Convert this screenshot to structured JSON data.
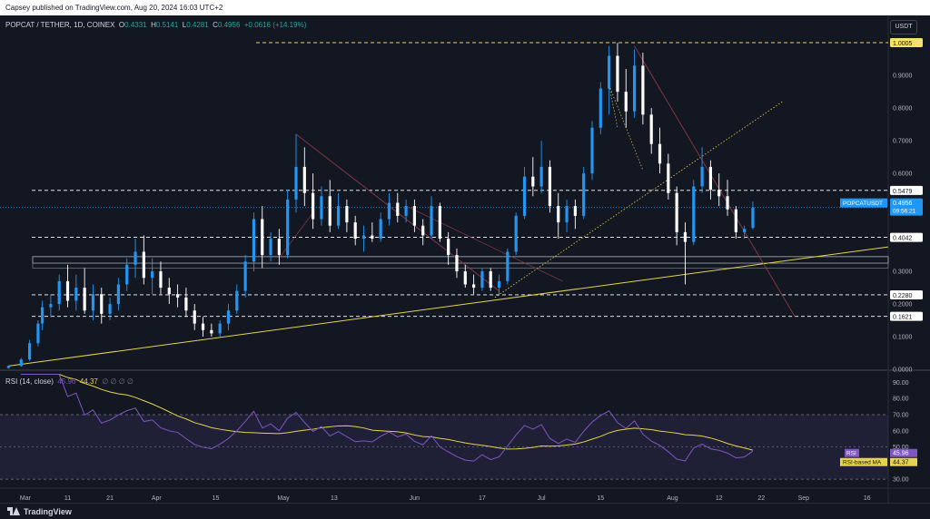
{
  "header": {
    "published": "Capsey published on TradingView.com, Aug 20, 2024 16:03 UTC+2"
  },
  "legend": {
    "symbol": "POPCAT / TETHER, 1D, COINEX",
    "open_label": "O",
    "open": "0.4331",
    "high_label": "H",
    "high": "0.5141",
    "low_label": "L",
    "low": "0.4281",
    "close_label": "C",
    "close": "0.4956",
    "change": "+0.0616 (+14.19%)"
  },
  "currency_button": "USDT",
  "rsi_legend": {
    "label": "RSI (14, close)",
    "rsi": "45.96",
    "ma": "44.37",
    "placeholders": "∅ ∅ ∅ ∅"
  },
  "footer": {
    "brand": "TradingView"
  },
  "colors": {
    "up": "#2196f3",
    "down": "#ffffff",
    "trend": "#e5d44a",
    "rsi": "#7e57c2",
    "rsi_ma": "#e5d44a",
    "background": "#131722"
  },
  "chart_data": {
    "type": "candlestick",
    "title": "POPCAT / TETHER, 1D, COINEX",
    "price_axis": {
      "ticks": [
        "1.0000",
        "0.9000",
        "0.8000",
        "0.7000",
        "0.6000",
        "0.5000",
        "0.3000",
        "0.2000",
        "0.1000",
        "0.0000"
      ],
      "ylim": [
        0,
        1.07
      ]
    },
    "time_axis": {
      "ticks": [
        {
          "label": "Mar",
          "date": "2024-03-01"
        },
        {
          "label": "11",
          "date": "2024-03-11"
        },
        {
          "label": "21",
          "date": "2024-03-21"
        },
        {
          "label": "Apr",
          "date": "2024-04-01"
        },
        {
          "label": "15",
          "date": "2024-04-15"
        },
        {
          "label": "May",
          "date": "2024-05-01"
        },
        {
          "label": "13",
          "date": "2024-05-13"
        },
        {
          "label": "Jun",
          "date": "2024-06-01"
        },
        {
          "label": "17",
          "date": "2024-06-17"
        },
        {
          "label": "Jul",
          "date": "2024-07-01"
        },
        {
          "label": "15",
          "date": "2024-07-15"
        },
        {
          "label": "Aug",
          "date": "2024-08-01"
        },
        {
          "label": "12",
          "date": "2024-08-12"
        },
        {
          "label": "22",
          "date": "2024-08-22"
        },
        {
          "label": "Sep",
          "date": "2024-09-01"
        },
        {
          "label": "16",
          "date": "2024-09-16"
        }
      ]
    },
    "levels": [
      {
        "price": 1.0005,
        "label": "1.0005",
        "color": "#f0d34a"
      },
      {
        "price": 0.5479,
        "label": "0.5479",
        "color": "#ffffff"
      },
      {
        "price": 0.4042,
        "label": "0.4042",
        "color": "#ffffff"
      },
      {
        "price": 0.228,
        "label": "0.2280",
        "color": "#ffffff"
      },
      {
        "price": 0.1621,
        "label": "0.1621",
        "color": "#ffffff"
      }
    ],
    "current_price": {
      "price": 0.4956,
      "symbol": "POPCATUSDT",
      "value": "0.4956",
      "countdown": "09:56:21"
    },
    "candles": [
      {
        "date": "2024-02-26",
        "o": 0.004,
        "h": 0.012,
        "l": 0.002,
        "c": 0.01
      },
      {
        "date": "2024-02-29",
        "o": 0.01,
        "h": 0.035,
        "l": 0.008,
        "c": 0.03
      },
      {
        "date": "2024-03-02",
        "o": 0.03,
        "h": 0.09,
        "l": 0.025,
        "c": 0.08
      },
      {
        "date": "2024-03-04",
        "o": 0.08,
        "h": 0.15,
        "l": 0.07,
        "c": 0.14
      },
      {
        "date": "2024-03-05",
        "o": 0.14,
        "h": 0.21,
        "l": 0.12,
        "c": 0.19
      },
      {
        "date": "2024-03-07",
        "o": 0.19,
        "h": 0.23,
        "l": 0.16,
        "c": 0.2
      },
      {
        "date": "2024-03-09",
        "o": 0.2,
        "h": 0.29,
        "l": 0.18,
        "c": 0.27
      },
      {
        "date": "2024-03-11",
        "o": 0.27,
        "h": 0.32,
        "l": 0.19,
        "c": 0.21
      },
      {
        "date": "2024-03-13",
        "o": 0.21,
        "h": 0.29,
        "l": 0.18,
        "c": 0.25
      },
      {
        "date": "2024-03-15",
        "o": 0.25,
        "h": 0.31,
        "l": 0.17,
        "c": 0.18
      },
      {
        "date": "2024-03-17",
        "o": 0.18,
        "h": 0.26,
        "l": 0.15,
        "c": 0.23
      },
      {
        "date": "2024-03-19",
        "o": 0.23,
        "h": 0.25,
        "l": 0.14,
        "c": 0.17
      },
      {
        "date": "2024-03-21",
        "o": 0.17,
        "h": 0.22,
        "l": 0.15,
        "c": 0.2
      },
      {
        "date": "2024-03-23",
        "o": 0.2,
        "h": 0.28,
        "l": 0.18,
        "c": 0.26
      },
      {
        "date": "2024-03-25",
        "o": 0.26,
        "h": 0.34,
        "l": 0.24,
        "c": 0.32
      },
      {
        "date": "2024-03-27",
        "o": 0.32,
        "h": 0.4,
        "l": 0.28,
        "c": 0.36
      },
      {
        "date": "2024-03-29",
        "o": 0.36,
        "h": 0.41,
        "l": 0.26,
        "c": 0.28
      },
      {
        "date": "2024-03-31",
        "o": 0.28,
        "h": 0.34,
        "l": 0.23,
        "c": 0.3
      },
      {
        "date": "2024-04-02",
        "o": 0.3,
        "h": 0.33,
        "l": 0.23,
        "c": 0.25
      },
      {
        "date": "2024-04-04",
        "o": 0.25,
        "h": 0.28,
        "l": 0.2,
        "c": 0.23
      },
      {
        "date": "2024-04-06",
        "o": 0.23,
        "h": 0.26,
        "l": 0.19,
        "c": 0.22
      },
      {
        "date": "2024-04-08",
        "o": 0.22,
        "h": 0.25,
        "l": 0.16,
        "c": 0.18
      },
      {
        "date": "2024-04-10",
        "o": 0.18,
        "h": 0.2,
        "l": 0.12,
        "c": 0.14
      },
      {
        "date": "2024-04-12",
        "o": 0.14,
        "h": 0.16,
        "l": 0.1,
        "c": 0.12
      },
      {
        "date": "2024-04-14",
        "o": 0.12,
        "h": 0.14,
        "l": 0.1,
        "c": 0.11
      },
      {
        "date": "2024-04-16",
        "o": 0.11,
        "h": 0.15,
        "l": 0.1,
        "c": 0.14
      },
      {
        "date": "2024-04-18",
        "o": 0.14,
        "h": 0.2,
        "l": 0.12,
        "c": 0.18
      },
      {
        "date": "2024-04-20",
        "o": 0.18,
        "h": 0.26,
        "l": 0.17,
        "c": 0.24
      },
      {
        "date": "2024-04-22",
        "o": 0.24,
        "h": 0.35,
        "l": 0.22,
        "c": 0.33
      },
      {
        "date": "2024-04-24",
        "o": 0.33,
        "h": 0.48,
        "l": 0.3,
        "c": 0.46
      },
      {
        "date": "2024-04-26",
        "o": 0.46,
        "h": 0.5,
        "l": 0.31,
        "c": 0.35
      },
      {
        "date": "2024-04-28",
        "o": 0.35,
        "h": 0.42,
        "l": 0.33,
        "c": 0.4
      },
      {
        "date": "2024-04-30",
        "o": 0.4,
        "h": 0.43,
        "l": 0.32,
        "c": 0.35
      },
      {
        "date": "2024-05-02",
        "o": 0.35,
        "h": 0.55,
        "l": 0.34,
        "c": 0.52
      },
      {
        "date": "2024-05-04",
        "o": 0.52,
        "h": 0.72,
        "l": 0.48,
        "c": 0.62
      },
      {
        "date": "2024-05-06",
        "o": 0.62,
        "h": 0.68,
        "l": 0.5,
        "c": 0.54
      },
      {
        "date": "2024-05-08",
        "o": 0.54,
        "h": 0.6,
        "l": 0.43,
        "c": 0.46
      },
      {
        "date": "2024-05-10",
        "o": 0.46,
        "h": 0.56,
        "l": 0.44,
        "c": 0.53
      },
      {
        "date": "2024-05-12",
        "o": 0.53,
        "h": 0.58,
        "l": 0.42,
        "c": 0.44
      },
      {
        "date": "2024-05-14",
        "o": 0.44,
        "h": 0.54,
        "l": 0.43,
        "c": 0.5
      },
      {
        "date": "2024-05-16",
        "o": 0.5,
        "h": 0.52,
        "l": 0.42,
        "c": 0.45
      },
      {
        "date": "2024-05-18",
        "o": 0.45,
        "h": 0.47,
        "l": 0.38,
        "c": 0.4
      },
      {
        "date": "2024-05-20",
        "o": 0.4,
        "h": 0.44,
        "l": 0.36,
        "c": 0.41
      },
      {
        "date": "2024-05-22",
        "o": 0.41,
        "h": 0.45,
        "l": 0.39,
        "c": 0.4
      },
      {
        "date": "2024-05-24",
        "o": 0.4,
        "h": 0.48,
        "l": 0.39,
        "c": 0.46
      },
      {
        "date": "2024-05-26",
        "o": 0.46,
        "h": 0.54,
        "l": 0.44,
        "c": 0.51
      },
      {
        "date": "2024-05-28",
        "o": 0.51,
        "h": 0.54,
        "l": 0.45,
        "c": 0.47
      },
      {
        "date": "2024-05-30",
        "o": 0.47,
        "h": 0.52,
        "l": 0.45,
        "c": 0.5
      },
      {
        "date": "2024-06-01",
        "o": 0.5,
        "h": 0.52,
        "l": 0.42,
        "c": 0.44
      },
      {
        "date": "2024-06-03",
        "o": 0.44,
        "h": 0.46,
        "l": 0.38,
        "c": 0.41
      },
      {
        "date": "2024-06-05",
        "o": 0.41,
        "h": 0.53,
        "l": 0.4,
        "c": 0.5
      },
      {
        "date": "2024-06-07",
        "o": 0.5,
        "h": 0.51,
        "l": 0.39,
        "c": 0.4
      },
      {
        "date": "2024-06-09",
        "o": 0.4,
        "h": 0.42,
        "l": 0.32,
        "c": 0.35
      },
      {
        "date": "2024-06-11",
        "o": 0.35,
        "h": 0.37,
        "l": 0.28,
        "c": 0.3
      },
      {
        "date": "2024-06-13",
        "o": 0.3,
        "h": 0.32,
        "l": 0.25,
        "c": 0.26
      },
      {
        "date": "2024-06-15",
        "o": 0.26,
        "h": 0.29,
        "l": 0.23,
        "c": 0.25
      },
      {
        "date": "2024-06-17",
        "o": 0.25,
        "h": 0.31,
        "l": 0.24,
        "c": 0.3
      },
      {
        "date": "2024-06-19",
        "o": 0.3,
        "h": 0.31,
        "l": 0.24,
        "c": 0.25
      },
      {
        "date": "2024-06-21",
        "o": 0.25,
        "h": 0.29,
        "l": 0.23,
        "c": 0.27
      },
      {
        "date": "2024-06-23",
        "o": 0.27,
        "h": 0.37,
        "l": 0.26,
        "c": 0.36
      },
      {
        "date": "2024-06-25",
        "o": 0.36,
        "h": 0.48,
        "l": 0.35,
        "c": 0.47
      },
      {
        "date": "2024-06-27",
        "o": 0.47,
        "h": 0.62,
        "l": 0.46,
        "c": 0.59
      },
      {
        "date": "2024-06-29",
        "o": 0.59,
        "h": 0.65,
        "l": 0.53,
        "c": 0.56
      },
      {
        "date": "2024-07-01",
        "o": 0.56,
        "h": 0.7,
        "l": 0.54,
        "c": 0.62
      },
      {
        "date": "2024-07-03",
        "o": 0.62,
        "h": 0.64,
        "l": 0.48,
        "c": 0.5
      },
      {
        "date": "2024-07-05",
        "o": 0.5,
        "h": 0.54,
        "l": 0.4,
        "c": 0.45
      },
      {
        "date": "2024-07-07",
        "o": 0.45,
        "h": 0.52,
        "l": 0.42,
        "c": 0.5
      },
      {
        "date": "2024-07-09",
        "o": 0.5,
        "h": 0.52,
        "l": 0.43,
        "c": 0.47
      },
      {
        "date": "2024-07-11",
        "o": 0.47,
        "h": 0.62,
        "l": 0.46,
        "c": 0.6
      },
      {
        "date": "2024-07-13",
        "o": 0.6,
        "h": 0.76,
        "l": 0.58,
        "c": 0.74
      },
      {
        "date": "2024-07-15",
        "o": 0.74,
        "h": 0.88,
        "l": 0.72,
        "c": 0.86
      },
      {
        "date": "2024-07-17",
        "o": 0.86,
        "h": 0.99,
        "l": 0.78,
        "c": 0.96
      },
      {
        "date": "2024-07-19",
        "o": 0.96,
        "h": 1.0,
        "l": 0.82,
        "c": 0.85
      },
      {
        "date": "2024-07-21",
        "o": 0.85,
        "h": 0.92,
        "l": 0.74,
        "c": 0.79
      },
      {
        "date": "2024-07-23",
        "o": 0.79,
        "h": 0.98,
        "l": 0.77,
        "c": 0.93
      },
      {
        "date": "2024-07-25",
        "o": 0.93,
        "h": 0.97,
        "l": 0.75,
        "c": 0.78
      },
      {
        "date": "2024-07-27",
        "o": 0.78,
        "h": 0.8,
        "l": 0.66,
        "c": 0.69
      },
      {
        "date": "2024-07-29",
        "o": 0.69,
        "h": 0.74,
        "l": 0.6,
        "c": 0.63
      },
      {
        "date": "2024-07-31",
        "o": 0.63,
        "h": 0.66,
        "l": 0.52,
        "c": 0.54
      },
      {
        "date": "2024-08-02",
        "o": 0.54,
        "h": 0.56,
        "l": 0.38,
        "c": 0.42
      },
      {
        "date": "2024-08-04",
        "o": 0.42,
        "h": 0.45,
        "l": 0.26,
        "c": 0.39
      },
      {
        "date": "2024-08-06",
        "o": 0.39,
        "h": 0.58,
        "l": 0.38,
        "c": 0.56
      },
      {
        "date": "2024-08-08",
        "o": 0.56,
        "h": 0.68,
        "l": 0.54,
        "c": 0.62
      },
      {
        "date": "2024-08-10",
        "o": 0.62,
        "h": 0.64,
        "l": 0.52,
        "c": 0.55
      },
      {
        "date": "2024-08-12",
        "o": 0.55,
        "h": 0.6,
        "l": 0.5,
        "c": 0.53
      },
      {
        "date": "2024-08-14",
        "o": 0.53,
        "h": 0.58,
        "l": 0.47,
        "c": 0.49
      },
      {
        "date": "2024-08-16",
        "o": 0.49,
        "h": 0.5,
        "l": 0.4,
        "c": 0.42
      },
      {
        "date": "2024-08-18",
        "o": 0.42,
        "h": 0.44,
        "l": 0.4,
        "c": 0.43
      },
      {
        "date": "2024-08-20",
        "o": 0.4331,
        "h": 0.5141,
        "l": 0.4281,
        "c": 0.4956
      }
    ],
    "rsi": {
      "label": "RSI (14, close)",
      "value": "45.96",
      "ma_label": "RSI-based MA",
      "ma_value": "44.37",
      "ticks": [
        "90.00",
        "80.00",
        "70.00",
        "60.00",
        "50.00",
        "40.00",
        "30.00"
      ],
      "ylim": [
        25,
        97
      ],
      "band": [
        30,
        70
      ]
    }
  }
}
